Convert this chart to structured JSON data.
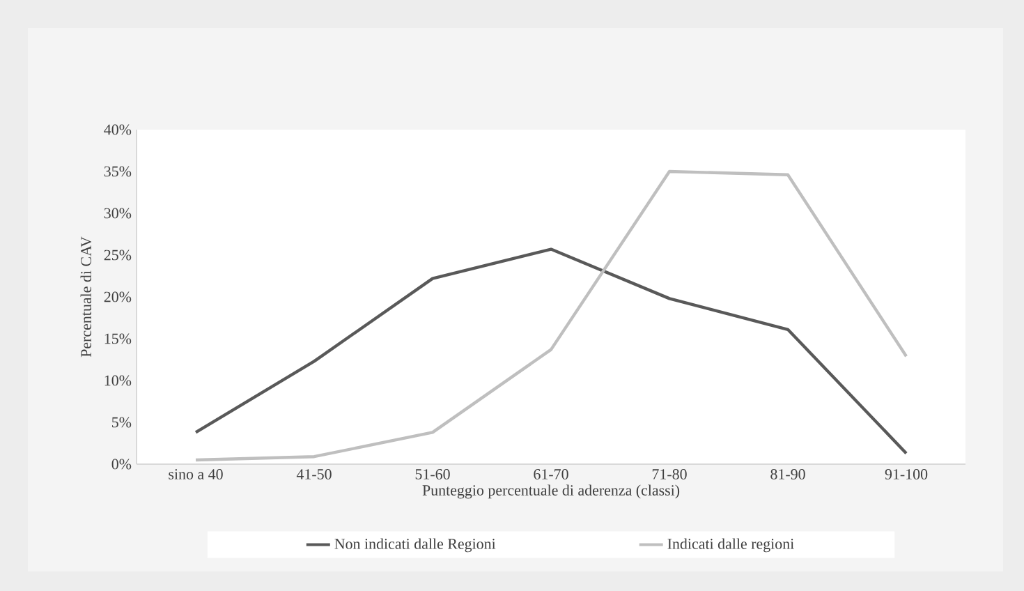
{
  "chart_data": {
    "type": "line",
    "xlabel": "Punteggio percentuale di aderenza (classi)",
    "ylabel": "Percentuale di CAV",
    "categories": [
      "sino a 40",
      "41-50",
      "51-60",
      "61-70",
      "71-80",
      "81-90",
      "91-100"
    ],
    "series": [
      {
        "name": "Non indicati dalle Regioni",
        "color": "#595959",
        "values": [
          3.8,
          12.3,
          22.2,
          25.7,
          19.8,
          16.1,
          1.3
        ]
      },
      {
        "name": "Indicati dalle regioni",
        "color": "#bfbfbf",
        "values": [
          0.5,
          0.9,
          3.8,
          13.7,
          35.0,
          34.6,
          12.9
        ]
      }
    ],
    "ylim": [
      0,
      40
    ],
    "yticks": [
      {
        "value": 0,
        "label": "0%"
      },
      {
        "value": 5,
        "label": "5%"
      },
      {
        "value": 10,
        "label": "10%"
      },
      {
        "value": 15,
        "label": "15%"
      },
      {
        "value": 20,
        "label": "20%"
      },
      {
        "value": 25,
        "label": "25%"
      },
      {
        "value": 30,
        "label": "30%"
      },
      {
        "value": 35,
        "label": "35%"
      },
      {
        "value": 40,
        "label": "40%"
      }
    ],
    "grid": false,
    "legend": "bottom",
    "marker": "none",
    "line_style": "solid"
  }
}
